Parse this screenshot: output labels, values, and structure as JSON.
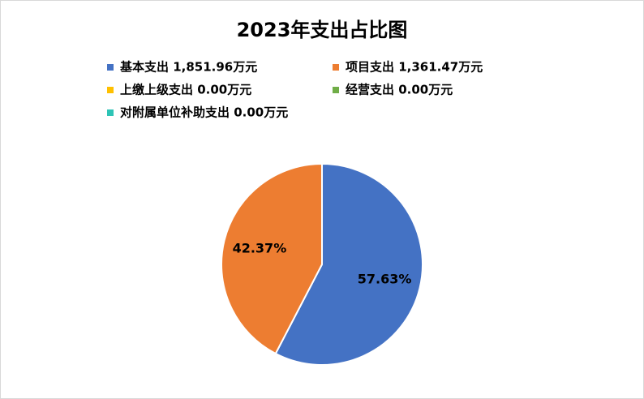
{
  "chart_data": {
    "type": "pie",
    "title": "2023年支出占比图",
    "categories": [
      "基本支出 1,851.96万元",
      "项目支出 1,361.47万元",
      "上缴上级支出 0.00万元",
      "经营支出 0.00万元",
      "对附属单位补助支出 0.00万元"
    ],
    "values": [
      57.63,
      42.37,
      0,
      0,
      0
    ],
    "value_labels": [
      "57.63%",
      "42.37%",
      null,
      null,
      null
    ],
    "colors": [
      "#4472c4",
      "#ed7d31",
      "#ffc000",
      "#70ad47",
      "#2ec4b6"
    ],
    "legend": "top"
  }
}
